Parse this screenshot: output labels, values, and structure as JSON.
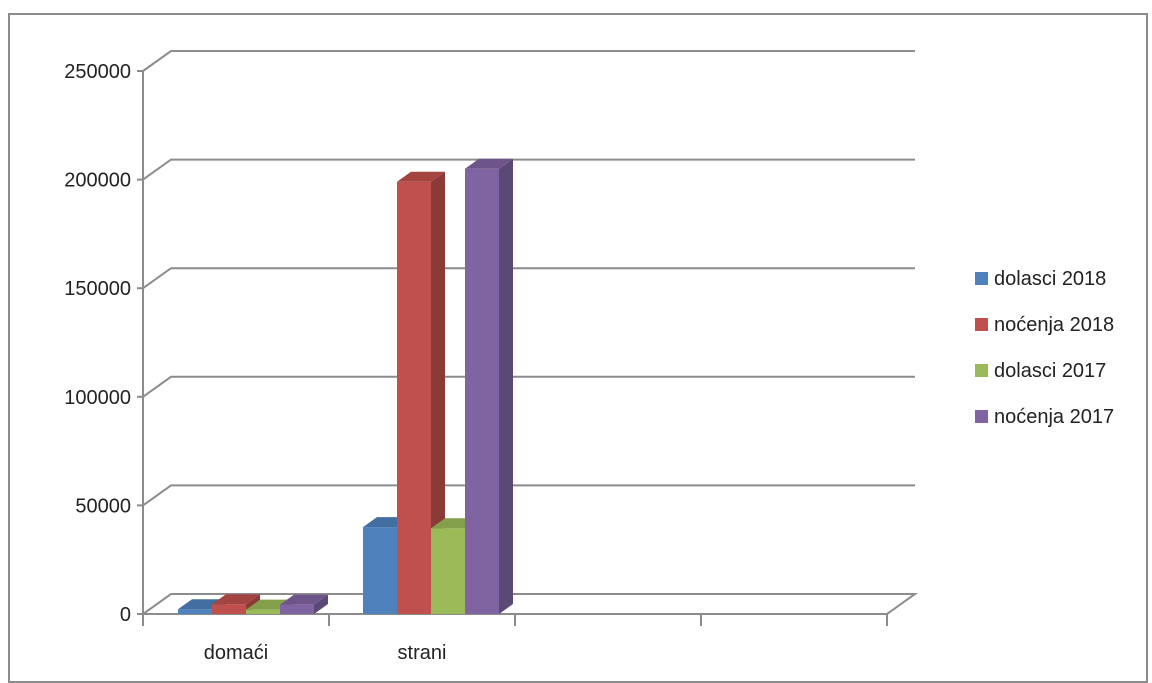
{
  "chart_data": {
    "type": "bar",
    "style": "3d-clustered-column",
    "title": "",
    "xlabel": "",
    "ylabel": "",
    "categories": [
      "domaći",
      "strani"
    ],
    "series": [
      {
        "name": "dolasci 2018",
        "color": "#4f81bd",
        "values": [
          2200,
          40000
        ]
      },
      {
        "name": "noćenja 2018",
        "color": "#c0504d",
        "values": [
          4500,
          199000
        ]
      },
      {
        "name": "dolasci 2017",
        "color": "#9bbb59",
        "values": [
          2000,
          39500
        ]
      },
      {
        "name": "noćenja 2017",
        "color": "#8064a2",
        "values": [
          4300,
          205000
        ]
      }
    ],
    "ylim": [
      0,
      250000
    ],
    "yticks": [
      0,
      50000,
      100000,
      150000,
      200000,
      250000
    ],
    "grid": true,
    "legend_position": "right"
  }
}
